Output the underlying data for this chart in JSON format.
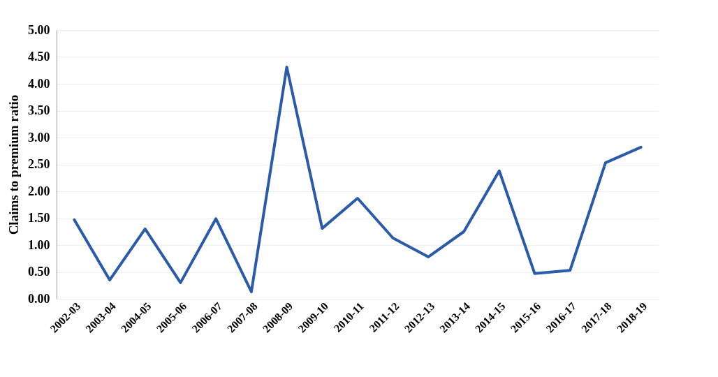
{
  "chart_data": {
    "type": "line",
    "ylabel": "Claims to premium ratio",
    "categories": [
      "2002-03",
      "2003-04",
      "2004-05",
      "2005-06",
      "2006-07",
      "2007-08",
      "2008-09",
      "2009-10",
      "2010-11",
      "2011-12",
      "2012-13",
      "2013-14",
      "2014-15",
      "2015-16",
      "2016-17",
      "2017-18",
      "2018-19"
    ],
    "series": [
      {
        "color": "#2b5aa8",
        "values": [
          1.47,
          0.35,
          1.3,
          0.3,
          1.49,
          0.13,
          4.31,
          1.31,
          1.87,
          1.13,
          0.78,
          1.25,
          2.38,
          0.47,
          0.53,
          2.53,
          2.82
        ]
      }
    ],
    "ylim": [
      0,
      5
    ],
    "yticks": [
      {
        "value": 0,
        "label": "0.00"
      },
      {
        "value": 0.5,
        "label": "0.50"
      },
      {
        "value": 1,
        "label": "1.00"
      },
      {
        "value": 1.5,
        "label": "1.50"
      },
      {
        "value": 2,
        "label": "2.00"
      },
      {
        "value": 2.5,
        "label": "2.50"
      },
      {
        "value": 3,
        "label": "3.00"
      },
      {
        "value": 3.5,
        "label": "3.50"
      },
      {
        "value": 4,
        "label": "4.00"
      },
      {
        "value": 4.5,
        "label": "4.50"
      },
      {
        "value": 5,
        "label": "5.00"
      }
    ],
    "grid": "y",
    "marker": "none",
    "line_style": "solid"
  }
}
